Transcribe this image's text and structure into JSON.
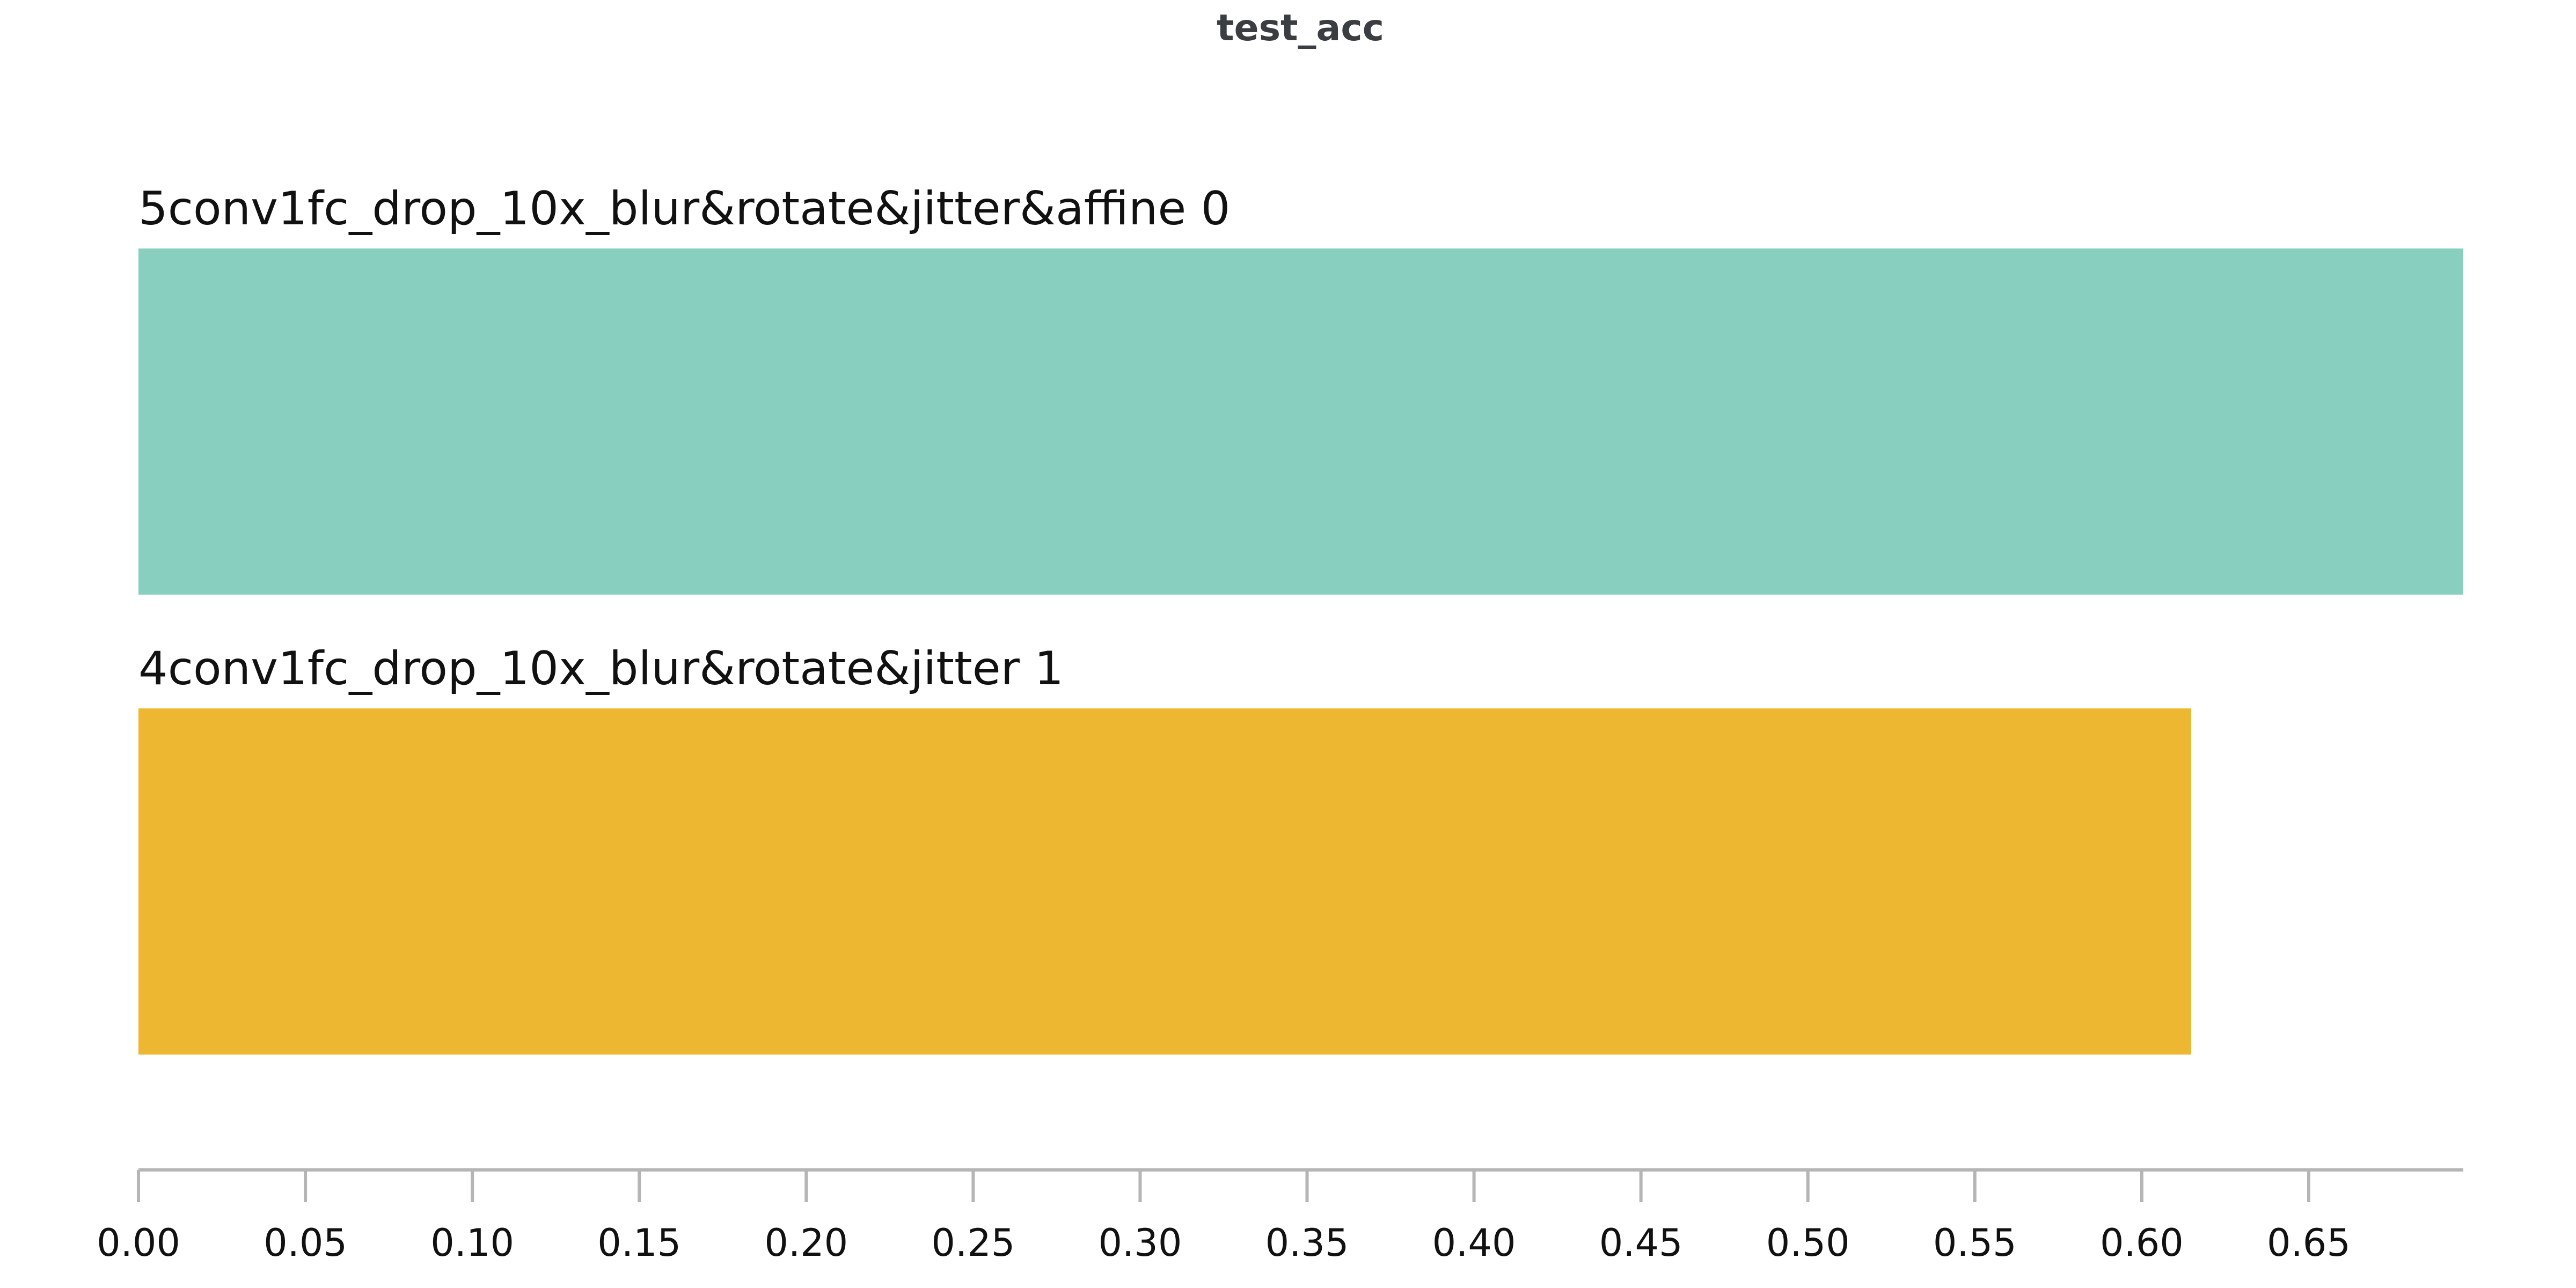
{
  "chart_data": {
    "type": "bar",
    "orientation": "horizontal",
    "title": "test_acc",
    "xlabel": "",
    "ylabel": "",
    "categories": [
      "5conv1fc_drop_10x_blur&rotate&jitter&affine 0",
      "4conv1fc_drop_10x_blur&rotate&jitter 1"
    ],
    "values": [
      0.6963,
      0.6148
    ],
    "colors": [
      "#89cfc0",
      "#edb732"
    ],
    "xlim": [
      0,
      0.6963
    ],
    "xticks": [
      "0.00",
      "0.05",
      "0.10",
      "0.15",
      "0.20",
      "0.25",
      "0.30",
      "0.35",
      "0.40",
      "0.45",
      "0.50",
      "0.55",
      "0.60",
      "0.65"
    ],
    "grid": false,
    "legend": "none"
  }
}
